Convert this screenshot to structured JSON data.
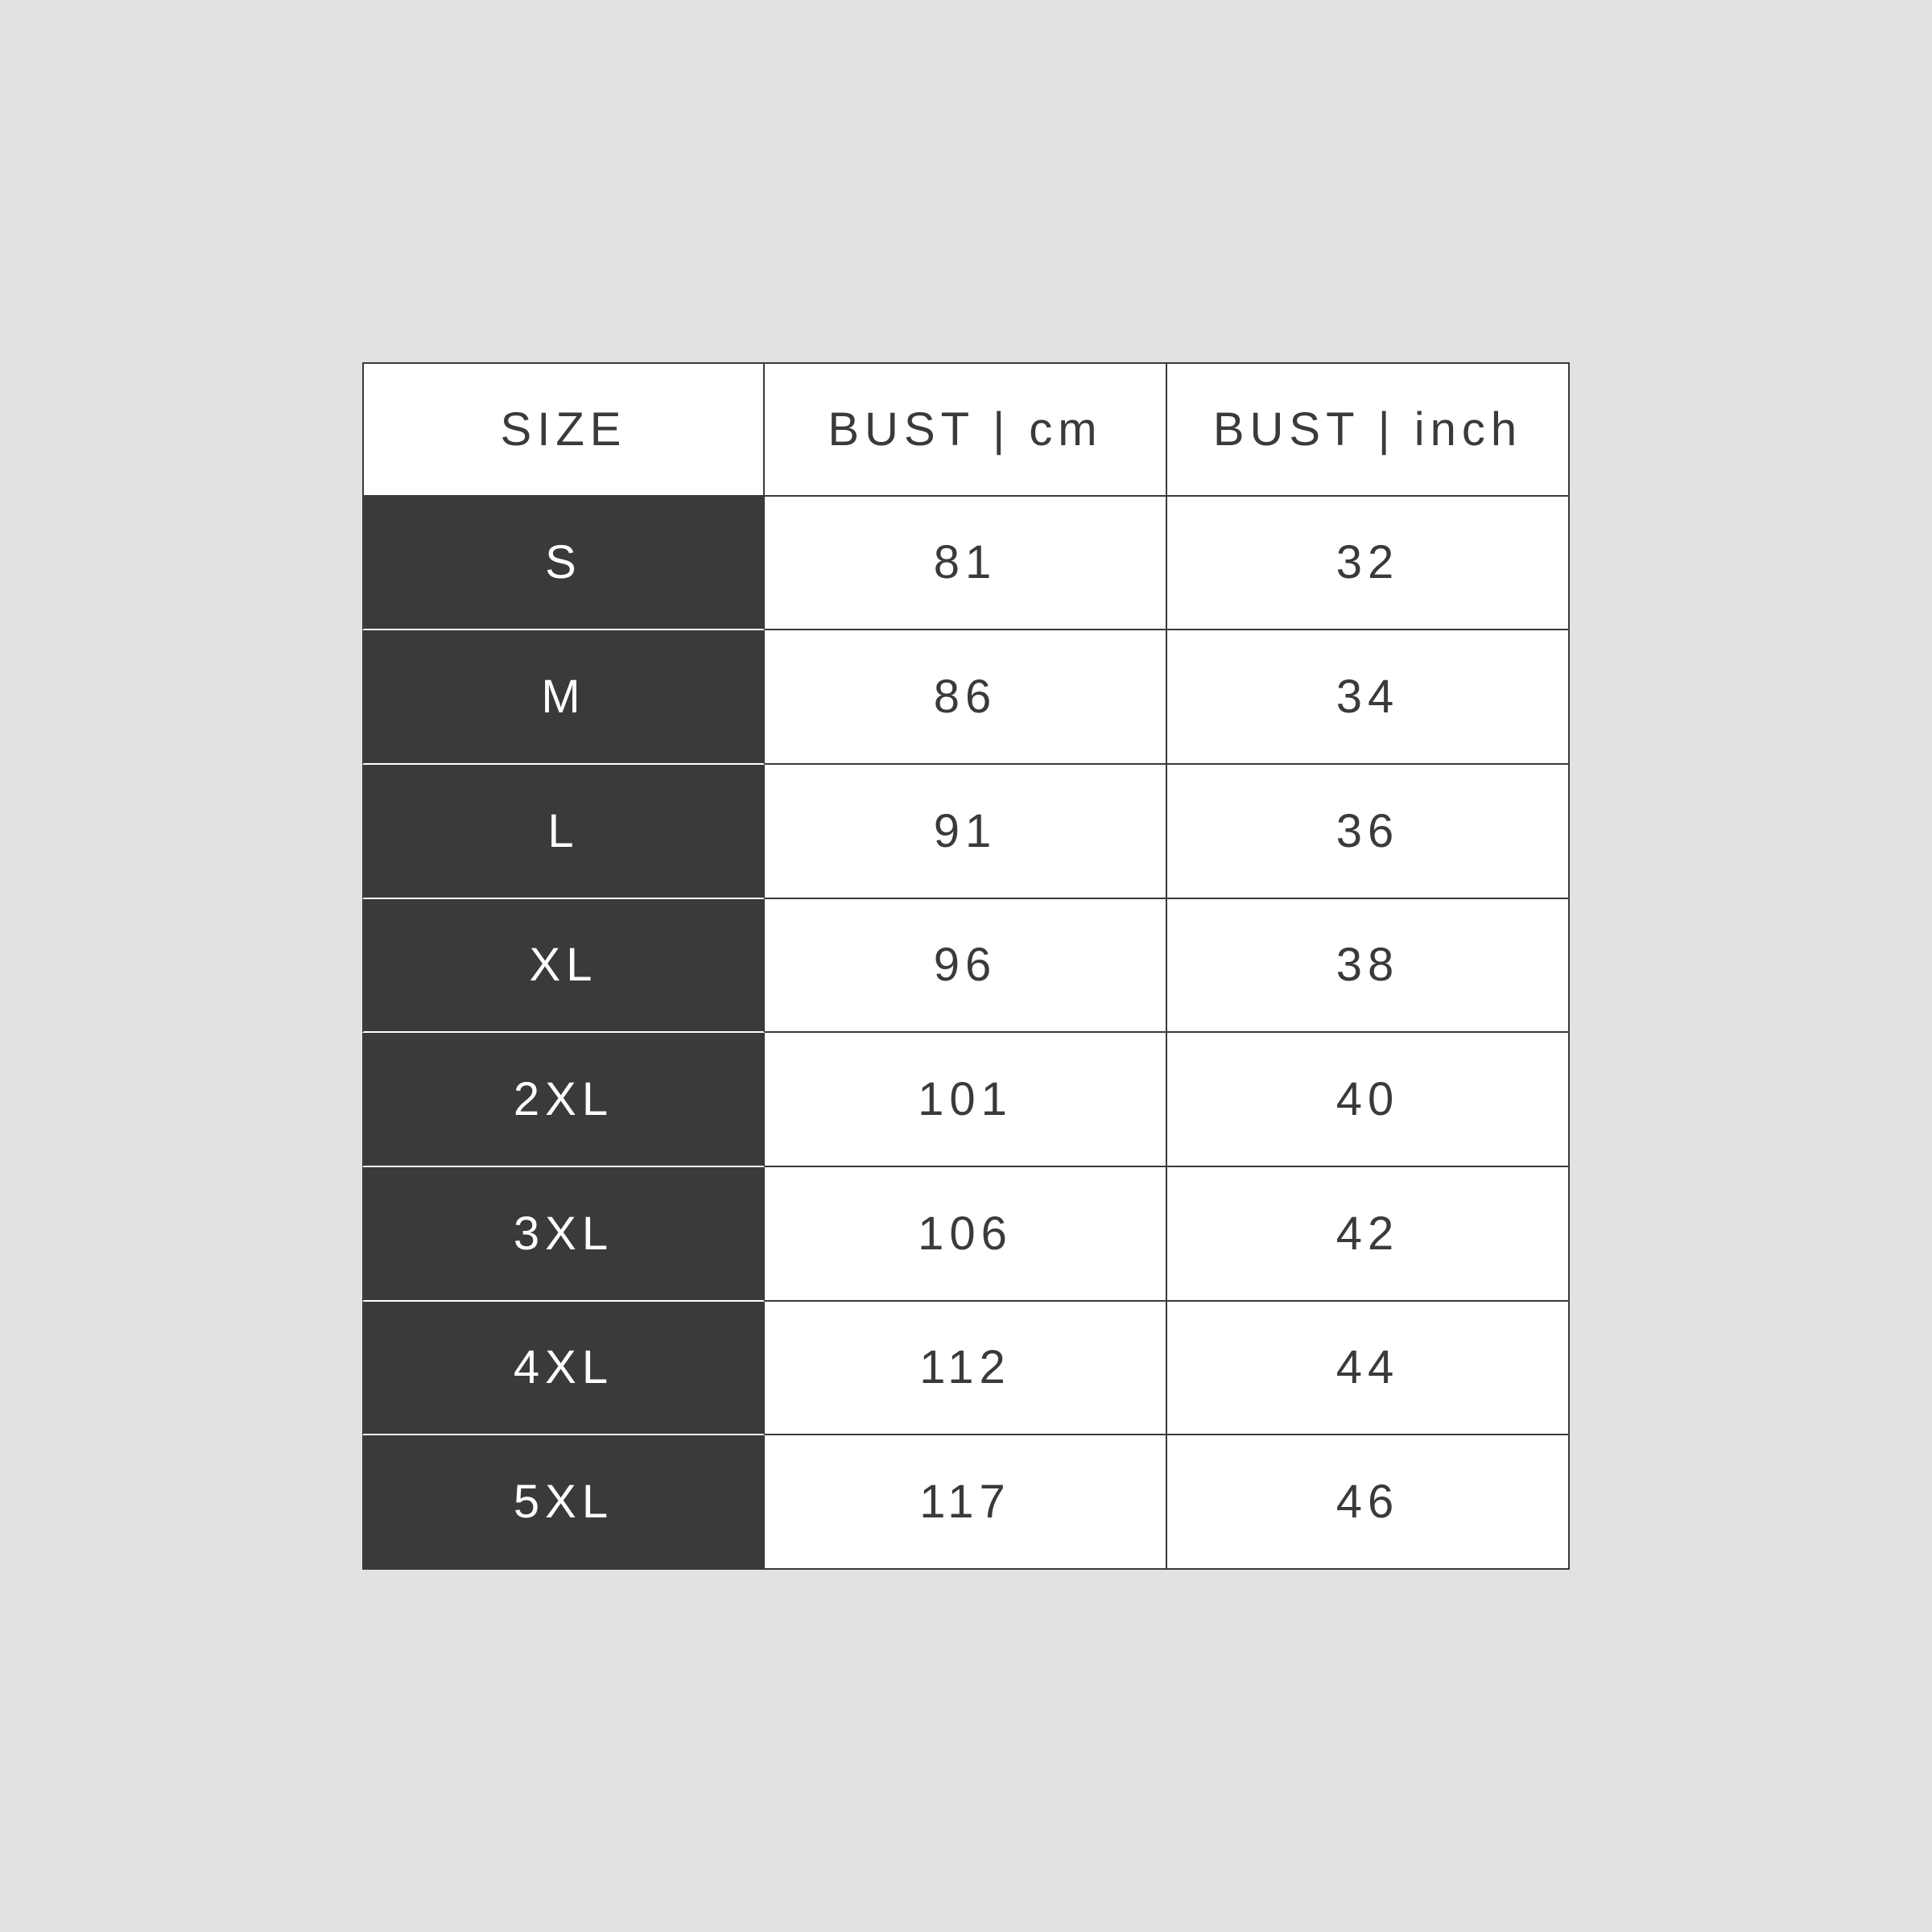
{
  "headers": [
    "SIZE",
    "BUST | cm",
    "BUST | inch"
  ],
  "rows": [
    {
      "size": "S",
      "cm": "81",
      "inch": "32"
    },
    {
      "size": "M",
      "cm": "86",
      "inch": "34"
    },
    {
      "size": "L",
      "cm": "91",
      "inch": "36"
    },
    {
      "size": "XL",
      "cm": "96",
      "inch": "38"
    },
    {
      "size": "2XL",
      "cm": "101",
      "inch": "40"
    },
    {
      "size": "3XL",
      "cm": "106",
      "inch": "42"
    },
    {
      "size": "4XL",
      "cm": "112",
      "inch": "44"
    },
    {
      "size": "5XL",
      "cm": "117",
      "inch": "46"
    }
  ],
  "colors": {
    "background": "#e1e2e4",
    "size_column": "#3a3a3c",
    "text": "#3a3a3c",
    "cell": "#ffffff"
  }
}
